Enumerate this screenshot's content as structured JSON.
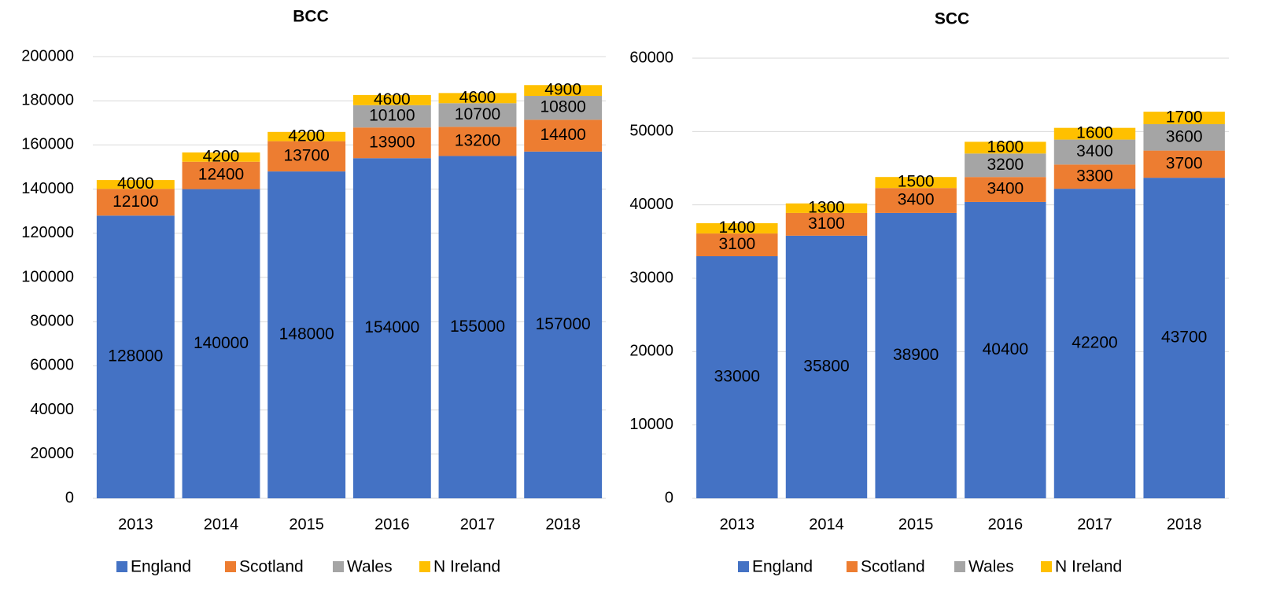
{
  "chart_data": [
    {
      "type": "bar",
      "stacked": true,
      "title": "BCC",
      "categories": [
        "2013",
        "2014",
        "2015",
        "2016",
        "2017",
        "2018"
      ],
      "series": [
        {
          "name": "England",
          "color": "#4472c4",
          "values": [
            128000,
            140000,
            148000,
            154000,
            155000,
            157000
          ]
        },
        {
          "name": "Scotland",
          "color": "#ed7d31",
          "values": [
            12100,
            12400,
            13700,
            13900,
            13200,
            14400
          ]
        },
        {
          "name": "Wales",
          "color": "#a5a5a5",
          "values": [
            null,
            null,
            null,
            10100,
            10700,
            10800
          ]
        },
        {
          "name": "N Ireland",
          "color": "#ffc000",
          "values": [
            4000,
            4200,
            4200,
            4600,
            4600,
            4900
          ]
        }
      ],
      "ylim": [
        0,
        200000
      ],
      "yticks": [
        0,
        20000,
        40000,
        60000,
        80000,
        100000,
        120000,
        140000,
        160000,
        180000,
        200000
      ],
      "grid": true,
      "legend": "bottom"
    },
    {
      "type": "bar",
      "stacked": true,
      "title": "SCC",
      "categories": [
        "2013",
        "2014",
        "2015",
        "2016",
        "2017",
        "2018"
      ],
      "series": [
        {
          "name": "England",
          "color": "#4472c4",
          "values": [
            33000,
            35800,
            38900,
            40400,
            42200,
            43700
          ]
        },
        {
          "name": "Scotland",
          "color": "#ed7d31",
          "values": [
            3100,
            3100,
            3400,
            3400,
            3300,
            3700
          ]
        },
        {
          "name": "Wales",
          "color": "#a5a5a5",
          "values": [
            null,
            null,
            null,
            3200,
            3400,
            3600
          ]
        },
        {
          "name": "N Ireland",
          "color": "#ffc000",
          "values": [
            1400,
            1300,
            1500,
            1600,
            1600,
            1700
          ]
        }
      ],
      "ylim": [
        0,
        60000
      ],
      "yticks": [
        0,
        10000,
        20000,
        30000,
        40000,
        50000,
        60000
      ],
      "grid": true,
      "legend": "bottom"
    }
  ]
}
